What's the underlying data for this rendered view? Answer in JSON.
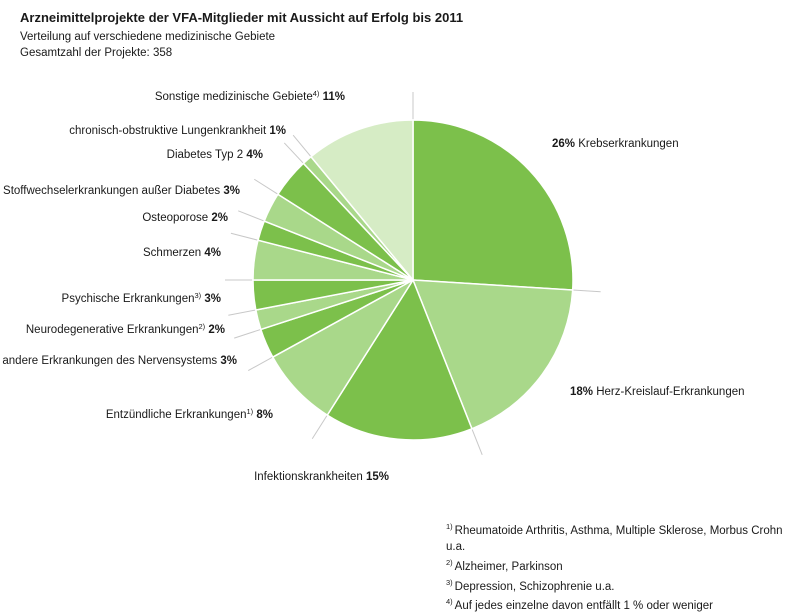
{
  "chart_data": {
    "type": "pie",
    "title": "Arzneimittelprojekte der VFA-Mitglieder mit Aussicht auf Erfolg bis 2011",
    "subtitle": "Verteilung auf verschiedene medizinische Gebiete",
    "total_label": "Gesamtzahl der Projekte: 358",
    "unit": "%",
    "slices": [
      {
        "label": "Krebserkrankungen",
        "value": 26,
        "sup": "",
        "color": "#7cc04b"
      },
      {
        "label": "Herz-Kreislauf-Erkrankungen",
        "value": 18,
        "sup": "",
        "color": "#a9d88a"
      },
      {
        "label": "Infektionskrankheiten",
        "value": 15,
        "sup": "",
        "color": "#7cc04b"
      },
      {
        "label": "Entzündliche Erkrankungen",
        "value": 8,
        "sup": "1)",
        "color": "#a9d88a"
      },
      {
        "label": "andere Erkrankungen des Nervensystems",
        "value": 3,
        "sup": "",
        "color": "#7cc04b"
      },
      {
        "label": "Neurodegenerative Erkrankungen",
        "value": 2,
        "sup": "2)",
        "color": "#a9d88a"
      },
      {
        "label": "Psychische Erkrankungen",
        "value": 3,
        "sup": "3)",
        "color": "#7cc04b"
      },
      {
        "label": "Schmerzen",
        "value": 4,
        "sup": "",
        "color": "#a9d88a"
      },
      {
        "label": "Osteoporose",
        "value": 2,
        "sup": "",
        "color": "#7cc04b"
      },
      {
        "label": "Stoffwechselerkrankungen außer Diabetes",
        "value": 3,
        "sup": "",
        "color": "#a9d88a"
      },
      {
        "label": "Diabetes Typ 2",
        "value": 4,
        "sup": "",
        "color": "#7cc04b"
      },
      {
        "label": "chronisch-obstruktive Lungenkrankheit",
        "value": 1,
        "sup": "",
        "color": "#a9d88a"
      },
      {
        "label": "Sonstige medizinische Gebiete",
        "value": 11,
        "sup": "4)",
        "color": "#d6ecc5"
      }
    ]
  },
  "footnotes": [
    {
      "mark": "1)",
      "text": "Rheumatoide Arthritis, Asthma, Multiple Sklerose, Morbus Crohn u.a."
    },
    {
      "mark": "2)",
      "text": "Alzheimer, Parkinson"
    },
    {
      "mark": "3)",
      "text": "Depression, Schizophrenie u.a."
    },
    {
      "mark": "4)",
      "text": "Auf jedes einzelne davon entfällt 1 % oder weniger"
    }
  ]
}
